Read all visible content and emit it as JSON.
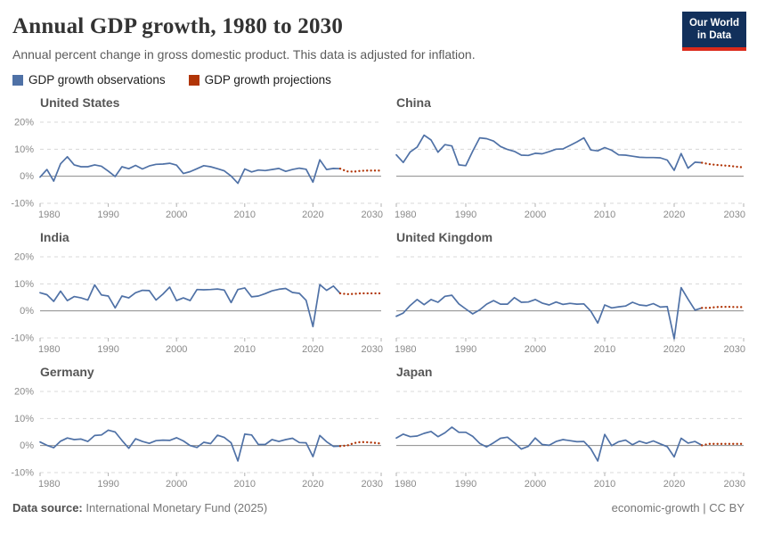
{
  "header": {
    "title": "Annual GDP growth, 1980 to 2030",
    "subtitle": "Annual percent change in gross domestic product. This data is adjusted for inflation.",
    "logo_line1": "Our World",
    "logo_line2": "in Data"
  },
  "legend": [
    {
      "label": "GDP growth observations",
      "color": "#4f71a6"
    },
    {
      "label": "GDP growth projections",
      "color": "#b13507"
    }
  ],
  "footer": {
    "source_label": "Data source:",
    "source_value": "International Monetary Fund (2025)",
    "right": "economic-growth | CC BY"
  },
  "chart_data": {
    "type": "line",
    "title": "Annual GDP growth, 1980 to 2030",
    "ylabel": "",
    "xlabel": "",
    "xlim": [
      1980,
      2030
    ],
    "ylim": [
      -10,
      20
    ],
    "x_ticks": [
      1980,
      1990,
      2000,
      2010,
      2020,
      2030
    ],
    "y_tick_labels": [
      "20%",
      "10%",
      "0%",
      "-10%"
    ],
    "y_tick_values": [
      20,
      10,
      0,
      -10
    ],
    "grid": "dashed horizontal at -10, 10, 20; solid zero line",
    "legend_position": "top-left above panels",
    "observation_years_start": 1980,
    "projection_years_start": 2025,
    "colors": {
      "observations": "#4f71a6",
      "projections": "#b13507"
    },
    "panels": [
      {
        "country": "United States",
        "observations": [
          -0.3,
          2.5,
          -1.8,
          4.6,
          7.2,
          4.2,
          3.5,
          3.5,
          4.2,
          3.7,
          1.9,
          -0.1,
          3.5,
          2.8,
          4.0,
          2.7,
          3.8,
          4.4,
          4.5,
          4.8,
          4.1,
          1.0,
          1.7,
          2.8,
          3.9,
          3.5,
          2.8,
          2.0,
          0.1,
          -2.6,
          2.7,
          1.6,
          2.3,
          2.1,
          2.5,
          2.9,
          1.8,
          2.5,
          3.0,
          2.6,
          -2.2,
          6.1,
          2.5,
          2.9,
          2.8
        ],
        "projections": [
          1.8,
          1.7,
          2.0,
          2.1,
          2.1,
          2.1
        ]
      },
      {
        "country": "China",
        "observations": [
          7.9,
          5.1,
          9.0,
          10.8,
          15.2,
          13.4,
          8.9,
          11.7,
          11.2,
          4.2,
          3.9,
          9.3,
          14.2,
          13.9,
          13.0,
          11.0,
          9.9,
          9.2,
          7.8,
          7.7,
          8.5,
          8.3,
          9.1,
          10.0,
          10.1,
          11.4,
          12.7,
          14.2,
          9.7,
          9.4,
          10.6,
          9.6,
          7.9,
          7.8,
          7.4,
          7.0,
          6.9,
          6.9,
          6.8,
          6.0,
          2.2,
          8.4,
          3.0,
          5.2,
          5.0
        ],
        "projections": [
          4.5,
          4.2,
          4.0,
          3.8,
          3.5,
          3.3
        ]
      },
      {
        "country": "India",
        "observations": [
          6.7,
          6.0,
          3.5,
          7.3,
          3.8,
          5.3,
          4.8,
          4.0,
          9.6,
          5.9,
          5.5,
          1.1,
          5.5,
          4.8,
          6.7,
          7.6,
          7.5,
          4.0,
          6.2,
          8.8,
          3.8,
          4.8,
          3.8,
          7.9,
          7.8,
          7.9,
          8.1,
          7.7,
          3.1,
          7.9,
          8.5,
          5.2,
          5.5,
          6.4,
          7.4,
          8.0,
          8.3,
          6.8,
          6.5,
          3.9,
          -5.8,
          9.7,
          7.6,
          9.2,
          6.5
        ],
        "projections": [
          6.2,
          6.3,
          6.5,
          6.5,
          6.5,
          6.5
        ]
      },
      {
        "country": "United Kingdom",
        "observations": [
          -2.0,
          -0.8,
          2.0,
          4.2,
          2.3,
          4.2,
          3.2,
          5.4,
          5.8,
          2.6,
          0.7,
          -1.1,
          0.4,
          2.5,
          3.8,
          2.5,
          2.5,
          4.9,
          3.2,
          3.3,
          4.2,
          2.9,
          2.2,
          3.3,
          2.4,
          2.8,
          2.5,
          2.6,
          -0.1,
          -4.5,
          2.2,
          1.1,
          1.5,
          1.8,
          3.2,
          2.2,
          1.9,
          2.7,
          1.4,
          1.6,
          -10.3,
          8.6,
          4.3,
          0.3,
          1.1
        ],
        "projections": [
          1.1,
          1.4,
          1.5,
          1.5,
          1.4,
          1.4
        ]
      },
      {
        "country": "Germany",
        "observations": [
          1.3,
          0.1,
          -0.8,
          1.6,
          2.8,
          2.2,
          2.4,
          1.5,
          3.7,
          3.9,
          5.7,
          5.0,
          1.9,
          -1.0,
          2.5,
          1.5,
          0.8,
          1.8,
          2.0,
          1.9,
          2.9,
          1.7,
          0.0,
          -0.7,
          1.2,
          0.7,
          3.8,
          3.0,
          1.0,
          -5.7,
          4.2,
          3.9,
          0.4,
          0.4,
          2.2,
          1.5,
          2.2,
          2.7,
          1.1,
          1.0,
          -4.1,
          3.7,
          1.4,
          -0.3,
          -0.2
        ],
        "projections": [
          0.0,
          0.9,
          1.3,
          1.2,
          1.0,
          0.7
        ]
      },
      {
        "country": "Japan",
        "observations": [
          2.8,
          4.2,
          3.3,
          3.5,
          4.5,
          5.2,
          3.3,
          4.7,
          6.8,
          4.9,
          4.9,
          3.4,
          0.8,
          -0.5,
          1.0,
          2.7,
          3.1,
          1.0,
          -1.3,
          -0.3,
          2.8,
          0.4,
          0.1,
          1.5,
          2.2,
          1.8,
          1.4,
          1.5,
          -1.2,
          -5.7,
          4.1,
          0.0,
          1.4,
          2.0,
          0.3,
          1.6,
          0.8,
          1.7,
          0.6,
          -0.4,
          -4.2,
          2.7,
          0.9,
          1.5,
          0.1
        ],
        "projections": [
          0.6,
          0.6,
          0.6,
          0.6,
          0.6,
          0.6
        ]
      }
    ]
  }
}
